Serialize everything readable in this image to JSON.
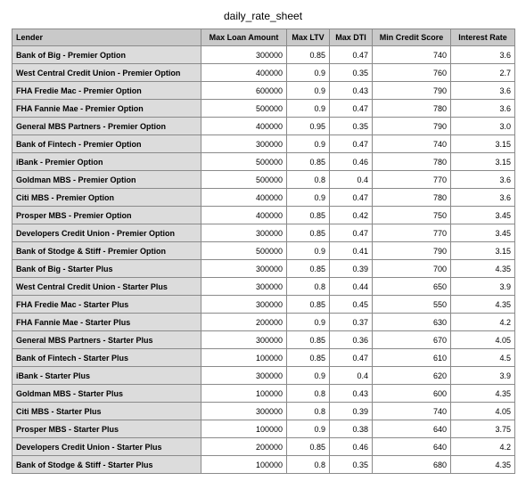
{
  "title": "daily_rate_sheet",
  "columns": [
    "Lender",
    "Max Loan Amount",
    "Max LTV",
    "Max DTI",
    "Min Credit Score",
    "Interest Rate"
  ],
  "rows": [
    [
      "Bank of Big - Premier Option",
      "300000",
      "0.85",
      "0.47",
      "740",
      "3.6"
    ],
    [
      "West Central Credit Union - Premier Option",
      "400000",
      "0.9",
      "0.35",
      "760",
      "2.7"
    ],
    [
      "FHA Fredie Mac - Premier Option",
      "600000",
      "0.9",
      "0.43",
      "790",
      "3.6"
    ],
    [
      "FHA Fannie Mae - Premier Option",
      "500000",
      "0.9",
      "0.47",
      "780",
      "3.6"
    ],
    [
      "General MBS Partners - Premier Option",
      "400000",
      "0.95",
      "0.35",
      "790",
      "3.0"
    ],
    [
      "Bank of Fintech - Premier Option",
      "300000",
      "0.9",
      "0.47",
      "740",
      "3.15"
    ],
    [
      "iBank - Premier Option",
      "500000",
      "0.85",
      "0.46",
      "780",
      "3.15"
    ],
    [
      "Goldman MBS - Premier Option",
      "500000",
      "0.8",
      "0.4",
      "770",
      "3.6"
    ],
    [
      "Citi MBS - Premier Option",
      "400000",
      "0.9",
      "0.47",
      "780",
      "3.6"
    ],
    [
      "Prosper MBS - Premier Option",
      "400000",
      "0.85",
      "0.42",
      "750",
      "3.45"
    ],
    [
      "Developers Credit Union - Premier Option",
      "300000",
      "0.85",
      "0.47",
      "770",
      "3.45"
    ],
    [
      "Bank of Stodge & Stiff - Premier Option",
      "500000",
      "0.9",
      "0.41",
      "790",
      "3.15"
    ],
    [
      "Bank of Big - Starter Plus",
      "300000",
      "0.85",
      "0.39",
      "700",
      "4.35"
    ],
    [
      "West Central Credit Union - Starter Plus",
      "300000",
      "0.8",
      "0.44",
      "650",
      "3.9"
    ],
    [
      "FHA Fredie Mac - Starter Plus",
      "300000",
      "0.85",
      "0.45",
      "550",
      "4.35"
    ],
    [
      "FHA Fannie Mae - Starter Plus",
      "200000",
      "0.9",
      "0.37",
      "630",
      "4.2"
    ],
    [
      "General MBS Partners - Starter Plus",
      "300000",
      "0.85",
      "0.36",
      "670",
      "4.05"
    ],
    [
      "Bank of Fintech - Starter Plus",
      "100000",
      "0.85",
      "0.47",
      "610",
      "4.5"
    ],
    [
      "iBank - Starter Plus",
      "300000",
      "0.9",
      "0.4",
      "620",
      "3.9"
    ],
    [
      "Goldman MBS - Starter Plus",
      "100000",
      "0.8",
      "0.43",
      "600",
      "4.35"
    ],
    [
      "Citi MBS - Starter Plus",
      "300000",
      "0.8",
      "0.39",
      "740",
      "4.05"
    ],
    [
      "Prosper MBS - Starter Plus",
      "100000",
      "0.9",
      "0.38",
      "640",
      "3.75"
    ],
    [
      "Developers Credit Union - Starter Plus",
      "200000",
      "0.85",
      "0.46",
      "640",
      "4.2"
    ],
    [
      "Bank of Stodge & Stiff - Starter Plus",
      "100000",
      "0.8",
      "0.35",
      "680",
      "4.35"
    ]
  ],
  "colors": {
    "header_bg": "#c9c9c9",
    "lender_cell_bg": "#dcdcdc",
    "border": "#8a8a8a"
  }
}
